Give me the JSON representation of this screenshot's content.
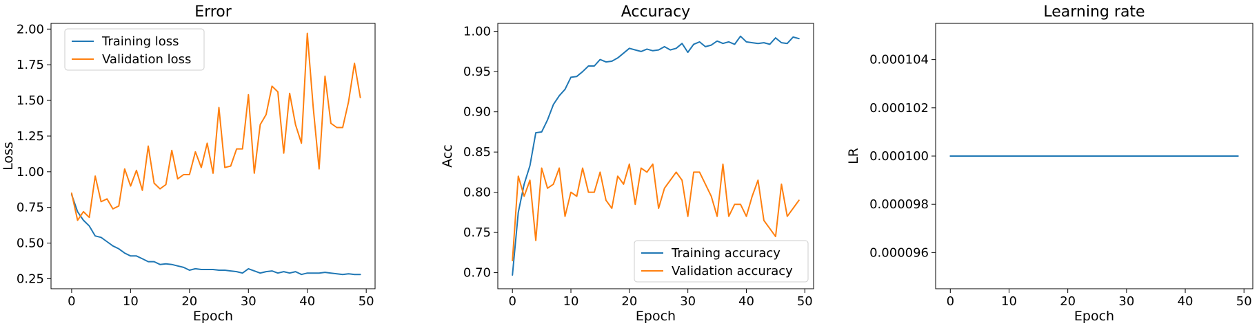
{
  "colors": {
    "blue": "#1f77b4",
    "orange": "#ff7f0e"
  },
  "chart_data": [
    {
      "type": "line",
      "title": "Error",
      "xlabel": "Epoch",
      "ylabel": "Loss",
      "xlim": [
        -3.5,
        51.5
      ],
      "ylim": [
        0.18,
        2.04
      ],
      "xticks": [
        0,
        10,
        20,
        30,
        40,
        50
      ],
      "xtick_labels": [
        "0",
        "10",
        "20",
        "30",
        "40",
        "50"
      ],
      "yticks": [
        0.25,
        0.5,
        0.75,
        1.0,
        1.25,
        1.5,
        1.75,
        2.0
      ],
      "ytick_labels": [
        "0.25",
        "0.50",
        "0.75",
        "1.00",
        "1.25",
        "1.50",
        "1.75",
        "2.00"
      ],
      "legend": "top-left",
      "grid": false,
      "series": [
        {
          "name": "Training loss",
          "color": "#1f77b4",
          "values": [
            0.84,
            0.72,
            0.66,
            0.62,
            0.55,
            0.54,
            0.51,
            0.48,
            0.46,
            0.43,
            0.41,
            0.41,
            0.39,
            0.37,
            0.37,
            0.35,
            0.355,
            0.35,
            0.34,
            0.33,
            0.31,
            0.32,
            0.315,
            0.315,
            0.315,
            0.31,
            0.31,
            0.305,
            0.3,
            0.29,
            0.32,
            0.305,
            0.29,
            0.3,
            0.305,
            0.29,
            0.3,
            0.29,
            0.3,
            0.28,
            0.29,
            0.29,
            0.29,
            0.295,
            0.29,
            0.285,
            0.28,
            0.285,
            0.28,
            0.28
          ]
        },
        {
          "name": "Validation loss",
          "color": "#ff7f0e",
          "values": [
            0.85,
            0.66,
            0.72,
            0.68,
            0.97,
            0.79,
            0.81,
            0.74,
            0.76,
            1.02,
            0.9,
            1.01,
            0.87,
            1.18,
            0.92,
            0.88,
            0.91,
            1.15,
            0.95,
            0.98,
            0.98,
            1.14,
            1.03,
            1.2,
            0.99,
            1.45,
            1.03,
            1.04,
            1.16,
            1.16,
            1.54,
            0.99,
            1.33,
            1.4,
            1.6,
            1.56,
            1.13,
            1.55,
            1.33,
            1.2,
            1.97,
            1.45,
            1.02,
            1.67,
            1.34,
            1.31,
            1.31,
            1.49,
            1.76,
            1.52
          ]
        }
      ]
    },
    {
      "type": "line",
      "title": "Accuracy",
      "xlabel": "Epoch",
      "ylabel": "Acc",
      "xlim": [
        -2.5,
        51.5
      ],
      "ylim": [
        0.68,
        1.01
      ],
      "xticks": [
        0,
        10,
        20,
        30,
        40,
        50
      ],
      "xtick_labels": [
        "0",
        "10",
        "20",
        "30",
        "40",
        "50"
      ],
      "yticks": [
        0.7,
        0.75,
        0.8,
        0.85,
        0.9,
        0.95,
        1.0
      ],
      "ytick_labels": [
        "0.70",
        "0.75",
        "0.80",
        "0.85",
        "0.90",
        "0.95",
        "1.00"
      ],
      "legend": "bottom-right",
      "grid": false,
      "series": [
        {
          "name": "Training accuracy",
          "color": "#1f77b4",
          "values": [
            0.697,
            0.775,
            0.81,
            0.833,
            0.874,
            0.875,
            0.89,
            0.909,
            0.92,
            0.928,
            0.943,
            0.944,
            0.95,
            0.957,
            0.957,
            0.965,
            0.962,
            0.963,
            0.967,
            0.973,
            0.979,
            0.977,
            0.975,
            0.978,
            0.976,
            0.977,
            0.981,
            0.977,
            0.979,
            0.985,
            0.974,
            0.984,
            0.987,
            0.981,
            0.983,
            0.988,
            0.985,
            0.987,
            0.984,
            0.994,
            0.987,
            0.986,
            0.985,
            0.986,
            0.984,
            0.992,
            0.986,
            0.985,
            0.993,
            0.991
          ]
        },
        {
          "name": "Validation accuracy",
          "color": "#ff7f0e",
          "values": [
            0.715,
            0.82,
            0.795,
            0.815,
            0.74,
            0.83,
            0.805,
            0.81,
            0.83,
            0.77,
            0.8,
            0.795,
            0.83,
            0.8,
            0.8,
            0.825,
            0.79,
            0.78,
            0.82,
            0.81,
            0.835,
            0.785,
            0.83,
            0.825,
            0.835,
            0.78,
            0.805,
            0.815,
            0.825,
            0.815,
            0.77,
            0.825,
            0.825,
            0.81,
            0.795,
            0.77,
            0.835,
            0.77,
            0.785,
            0.785,
            0.77,
            0.795,
            0.815,
            0.765,
            0.755,
            0.745,
            0.81,
            0.77,
            0.78,
            0.79
          ]
        }
      ]
    },
    {
      "type": "line",
      "title": "Learning rate",
      "xlabel": "Epoch",
      "ylabel": "LR",
      "xlim": [
        -2.5,
        51.5
      ],
      "ylim": [
        9.45e-05,
        0.0001055
      ],
      "xticks": [
        0,
        10,
        20,
        30,
        40,
        50
      ],
      "xtick_labels": [
        "0",
        "10",
        "20",
        "30",
        "40",
        "50"
      ],
      "yticks": [
        9.6e-05,
        9.8e-05,
        0.0001,
        0.000102,
        0.000104
      ],
      "ytick_labels": [
        "0.000096",
        "0.000098",
        "0.000100",
        "0.000102",
        "0.000104"
      ],
      "legend": "none",
      "grid": false,
      "series": [
        {
          "color": "#1f77b4",
          "values": [
            0.0001,
            0.0001,
            0.0001,
            0.0001,
            0.0001,
            0.0001,
            0.0001,
            0.0001,
            0.0001,
            0.0001,
            0.0001,
            0.0001,
            0.0001,
            0.0001,
            0.0001,
            0.0001,
            0.0001,
            0.0001,
            0.0001,
            0.0001,
            0.0001,
            0.0001,
            0.0001,
            0.0001,
            0.0001,
            0.0001,
            0.0001,
            0.0001,
            0.0001,
            0.0001,
            0.0001,
            0.0001,
            0.0001,
            0.0001,
            0.0001,
            0.0001,
            0.0001,
            0.0001,
            0.0001,
            0.0001,
            0.0001,
            0.0001,
            0.0001,
            0.0001,
            0.0001,
            0.0001,
            0.0001,
            0.0001,
            0.0001,
            0.0001
          ]
        }
      ]
    }
  ]
}
